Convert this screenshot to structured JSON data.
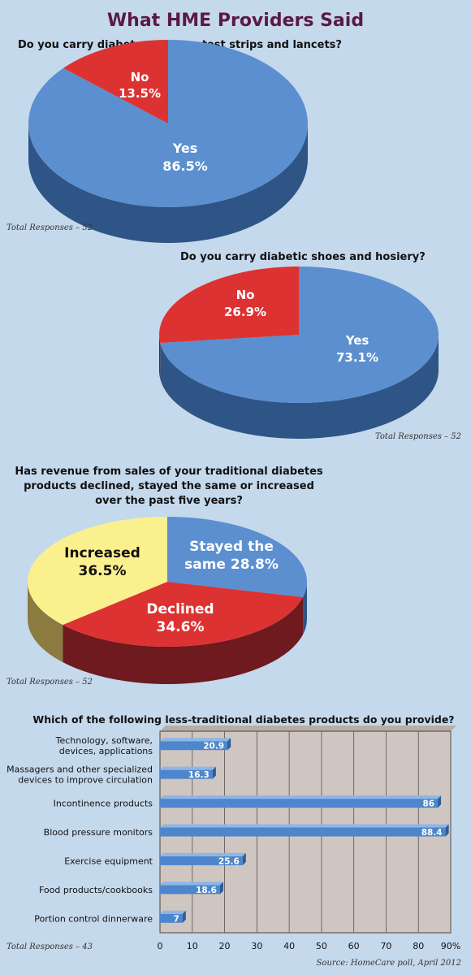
{
  "page": {
    "title": "What HME Providers Said",
    "source": "Source: HomeCare poll, April 2012"
  },
  "colors": {
    "background": "#c5d9ec",
    "title": "#5a1a45",
    "blue": "#5b8fd0",
    "blue_side": "#2e5585",
    "red": "#dd3232",
    "red_side": "#6e1a1f",
    "yellow": "#fbf08e",
    "yellow_side": "#8b7b40",
    "plot_bg": "#cfc6c1"
  },
  "chart_data": [
    {
      "type": "pie",
      "title": "Do you carry diabetes meters, test strips and lancets?",
      "note": "Total Responses – 52",
      "slices": [
        {
          "label": "Yes",
          "value": 86.5,
          "value_text": "86.5%",
          "color": "#5b8fd0"
        },
        {
          "label": "No",
          "value": 13.5,
          "value_text": "13.5%",
          "color": "#dd3232"
        }
      ]
    },
    {
      "type": "pie",
      "title": "Do you carry diabetic shoes and hosiery?",
      "note": "Total Responses – 52",
      "slices": [
        {
          "label": "Yes",
          "value": 73.1,
          "value_text": "73.1%",
          "color": "#5b8fd0"
        },
        {
          "label": "No",
          "value": 26.9,
          "value_text": "26.9%",
          "color": "#dd3232"
        }
      ]
    },
    {
      "type": "pie",
      "title_lines": [
        "Has revenue from sales of your traditional diabetes",
        "products declined, stayed the same or increased",
        "over the past five years?"
      ],
      "note": "Total Responses – 52",
      "slices": [
        {
          "label_lines": [
            "Stayed the",
            "same 28.8%"
          ],
          "value": 28.8,
          "color": "#5b8fd0"
        },
        {
          "label_lines": [
            "Declined",
            "34.6%"
          ],
          "value": 34.6,
          "color": "#dd3232"
        },
        {
          "label_lines": [
            "Increased",
            "36.5%"
          ],
          "value": 36.5,
          "color": "#fbf08e"
        }
      ]
    },
    {
      "type": "bar",
      "orientation": "horizontal",
      "title": "Which of the following less-traditional diabetes products do you provide?",
      "note": "Total Responses – 43",
      "categories": [
        [
          "Technology, software,",
          "devices, applications"
        ],
        [
          "Massagers and other specialized",
          "devices to improve circulation"
        ],
        [
          "Incontinence products"
        ],
        [
          "Blood pressure monitors"
        ],
        [
          "Exercise equipment"
        ],
        [
          "Food products/cookbooks"
        ],
        [
          "Portion control dinnerware"
        ]
      ],
      "values": [
        20.9,
        16.3,
        86,
        88.4,
        25.6,
        18.6,
        7
      ],
      "value_labels": [
        "20.9",
        "16.3",
        "86",
        "88.4",
        "25.6",
        "18.6",
        "7"
      ],
      "xlim": [
        0,
        90
      ],
      "ticks": [
        "0",
        "10",
        "20",
        "30",
        "40",
        "50",
        "60",
        "70",
        "80",
        "90%"
      ],
      "grid": true
    }
  ]
}
